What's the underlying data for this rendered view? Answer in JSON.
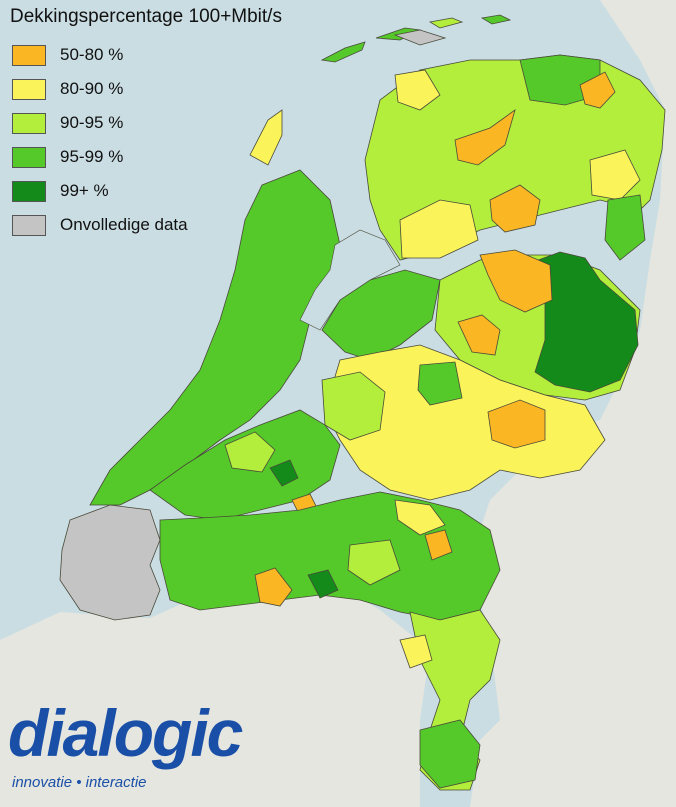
{
  "map": {
    "title": "Dekkingspercentage 100+Mbit/s",
    "legend": [
      {
        "label": "50-80 %",
        "color": "#fbb623"
      },
      {
        "label": "80-90 %",
        "color": "#fbf35a"
      },
      {
        "label": "90-95 %",
        "color": "#b2ee3b"
      },
      {
        "label": "95-99 %",
        "color": "#55c92a"
      },
      {
        "label": "99+ %",
        "color": "#138a19"
      },
      {
        "label": "Onvolledige data",
        "color": "#c4c4c4"
      }
    ],
    "colors": {
      "sea": "#c9dde3",
      "land_background": "#e4e6df",
      "border": "#4a4a3a"
    }
  },
  "logo": {
    "word": "dialogic",
    "tagline": "innovatie • interactie"
  }
}
